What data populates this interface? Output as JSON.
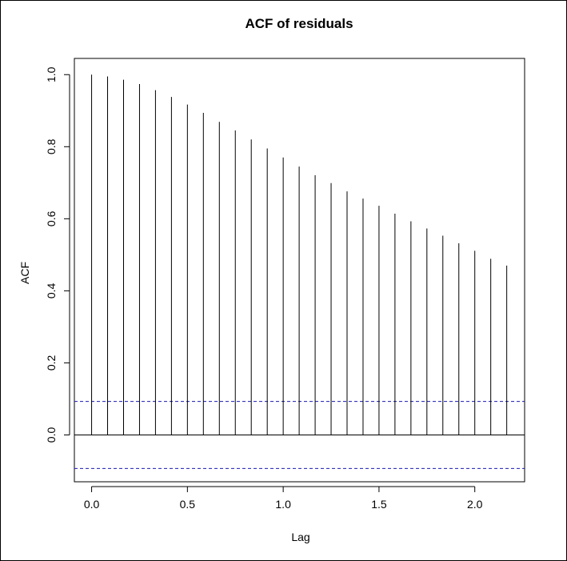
{
  "chart_data": {
    "type": "bar",
    "title": "ACF of residuals",
    "xlabel": "Lag",
    "ylabel": "ACF",
    "xlim": [
      -0.09,
      2.26
    ],
    "ylim": [
      -0.13,
      1.045
    ],
    "x_ticks": [
      0.0,
      0.5,
      1.0,
      1.5,
      2.0
    ],
    "x_tick_labels": [
      "0.0",
      "0.5",
      "1.0",
      "1.5",
      "2.0"
    ],
    "y_ticks": [
      0.0,
      0.2,
      0.4,
      0.6,
      0.8,
      1.0
    ],
    "y_tick_labels": [
      "0.0",
      "0.2",
      "0.4",
      "0.6",
      "0.8",
      "1.0"
    ],
    "series": [
      {
        "x": [
          0.0,
          0.0833,
          0.1667,
          0.25,
          0.3333,
          0.4167,
          0.5,
          0.5833,
          0.6667,
          0.75,
          0.8333,
          0.9167,
          1.0,
          1.0833,
          1.1667,
          1.25,
          1.3333,
          1.4167,
          1.5,
          1.5833,
          1.6667,
          1.75,
          1.8333,
          1.9167,
          2.0,
          2.0833,
          2.1667
        ],
        "values": [
          1.0,
          0.995,
          0.986,
          0.974,
          0.957,
          0.938,
          0.917,
          0.894,
          0.869,
          0.845,
          0.82,
          0.795,
          0.77,
          0.745,
          0.721,
          0.699,
          0.676,
          0.656,
          0.636,
          0.614,
          0.593,
          0.573,
          0.553,
          0.532,
          0.511,
          0.489,
          0.47
        ]
      }
    ],
    "confidence_bounds": [
      0.093,
      -0.093
    ],
    "colors": {
      "bars": "#000000",
      "zero_line": "#000000",
      "confidence": "#1a1ab3",
      "frame": "#000000"
    },
    "grid": false,
    "legend": "none"
  }
}
